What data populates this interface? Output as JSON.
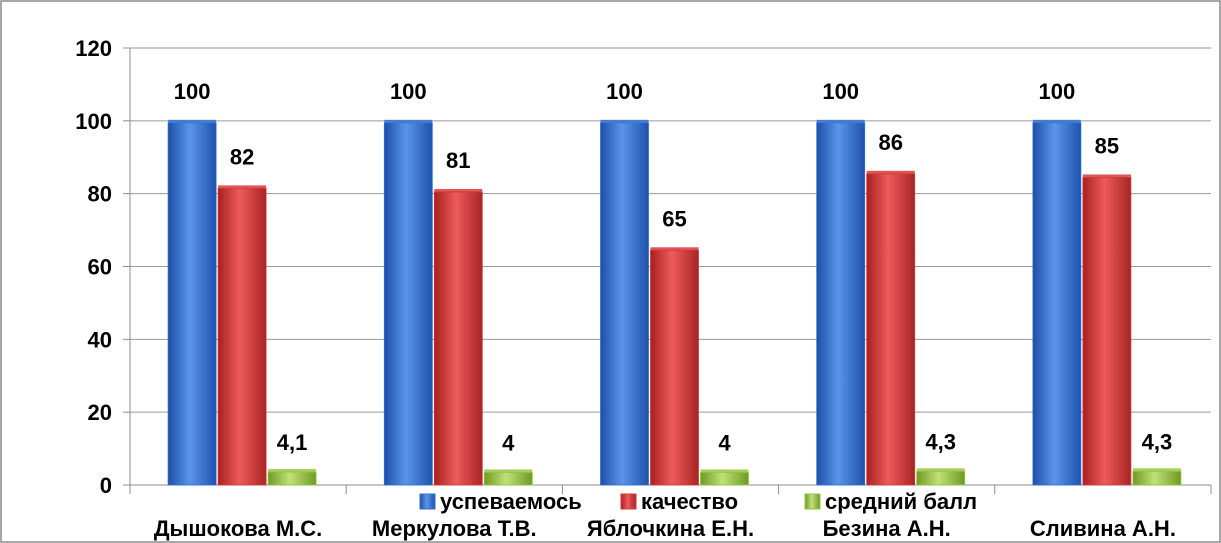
{
  "chart_data": {
    "type": "bar",
    "categories": [
      "Дышокова М.С.",
      "Меркулова Т.В.",
      "Яблочкина Е.Н.",
      "Безина А.Н.",
      "Сливина А.Н."
    ],
    "series": [
      {
        "name": "успеваемось",
        "values": [
          100,
          100,
          100,
          100,
          100
        ],
        "labels": [
          "100",
          "100",
          "100",
          "100",
          "100"
        ],
        "color": "#2F6FD0"
      },
      {
        "name": "качество",
        "values": [
          82,
          81,
          65,
          86,
          85
        ],
        "labels": [
          "82",
          "81",
          "65",
          "86",
          "85"
        ],
        "color": "#D93636"
      },
      {
        "name": "средний балл",
        "values": [
          4.1,
          4,
          4,
          4.3,
          4.3
        ],
        "labels": [
          "4,1",
          "4",
          "4",
          "4,3",
          "4,3"
        ],
        "color": "#94C53E"
      }
    ],
    "y_ticks": [
      "0",
      "20",
      "40",
      "60",
      "80",
      "100",
      "120"
    ],
    "ylim": [
      0,
      120
    ],
    "grid": true,
    "legend_position": "bottom"
  }
}
